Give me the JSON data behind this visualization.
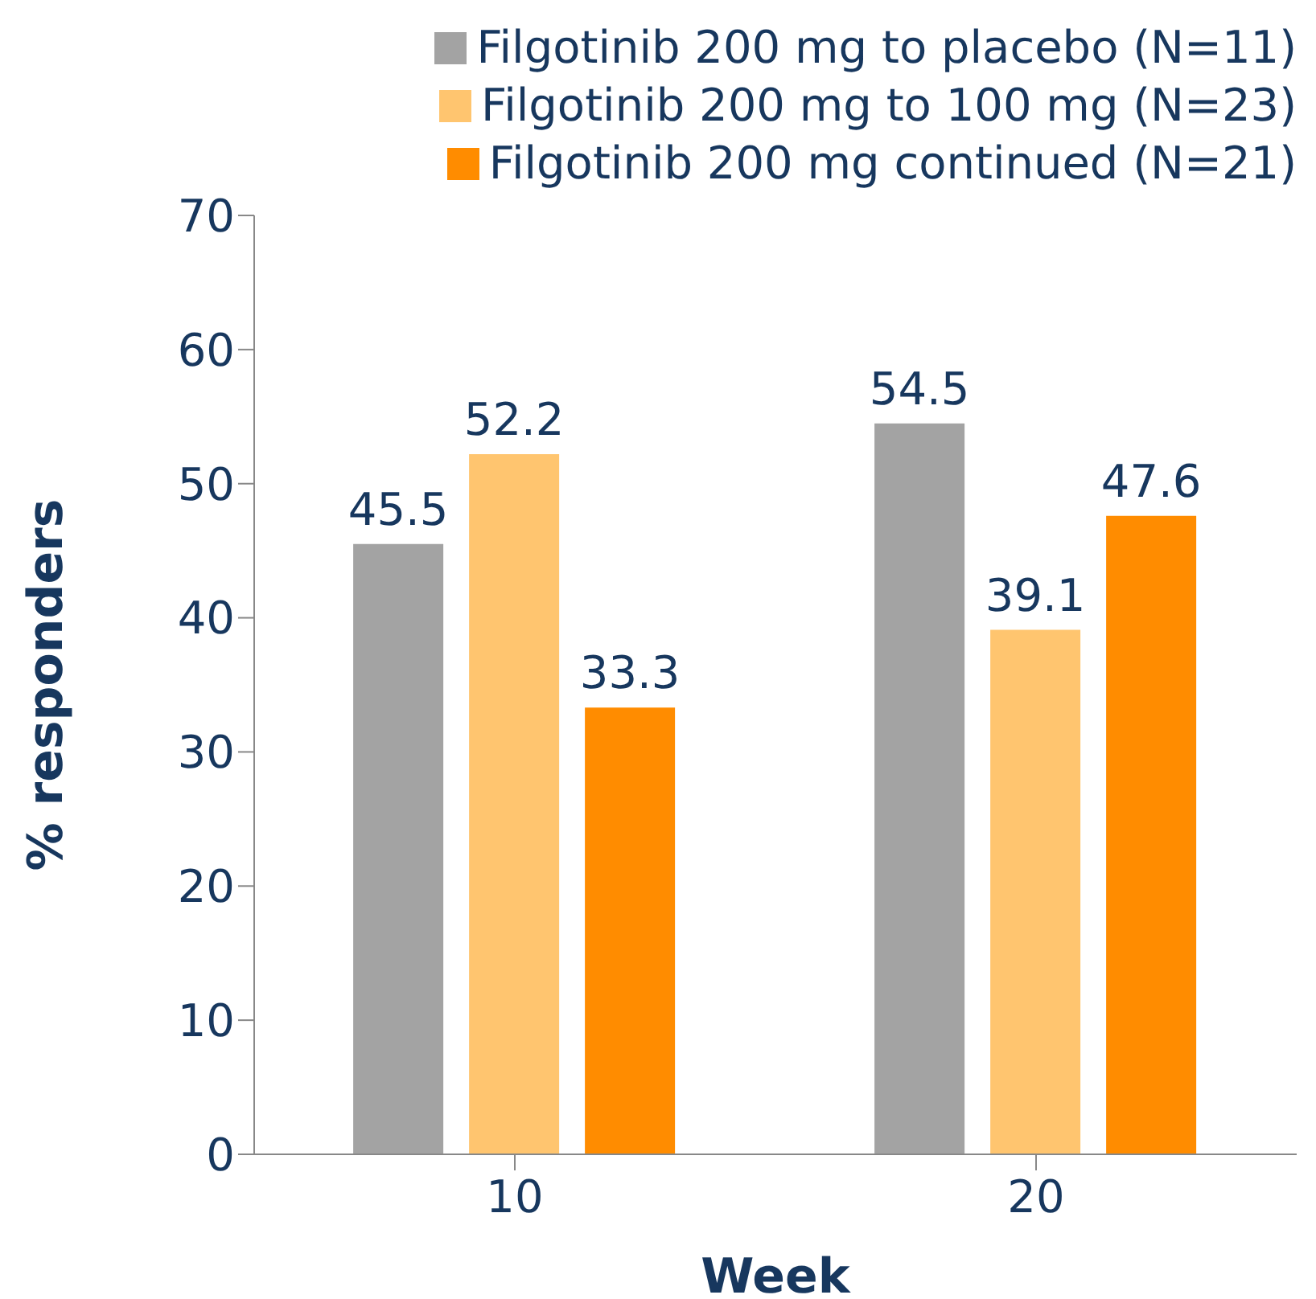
{
  "chart_data": {
    "type": "bar",
    "xlabel": "Week",
    "ylabel": "% responders",
    "categories": [
      "10",
      "20"
    ],
    "series": [
      {
        "name": "Filgotinib 200 mg to placebo (N=11)",
        "color": "#a3a3a3",
        "values": [
          45.5,
          54.5
        ]
      },
      {
        "name": "Filgotinib 200 mg to 100 mg (N=23)",
        "color": "#ffc56f",
        "values": [
          52.2,
          39.1
        ]
      },
      {
        "name": "Filgotinib 200 mg continued (N=21)",
        "color": "#ff8c00",
        "values": [
          33.3,
          47.6
        ]
      }
    ],
    "ylim": [
      0,
      70
    ],
    "yticks": [
      0,
      10,
      20,
      30,
      40,
      50,
      60,
      70
    ],
    "grid": false,
    "legend": "top right",
    "data_labels": true
  }
}
